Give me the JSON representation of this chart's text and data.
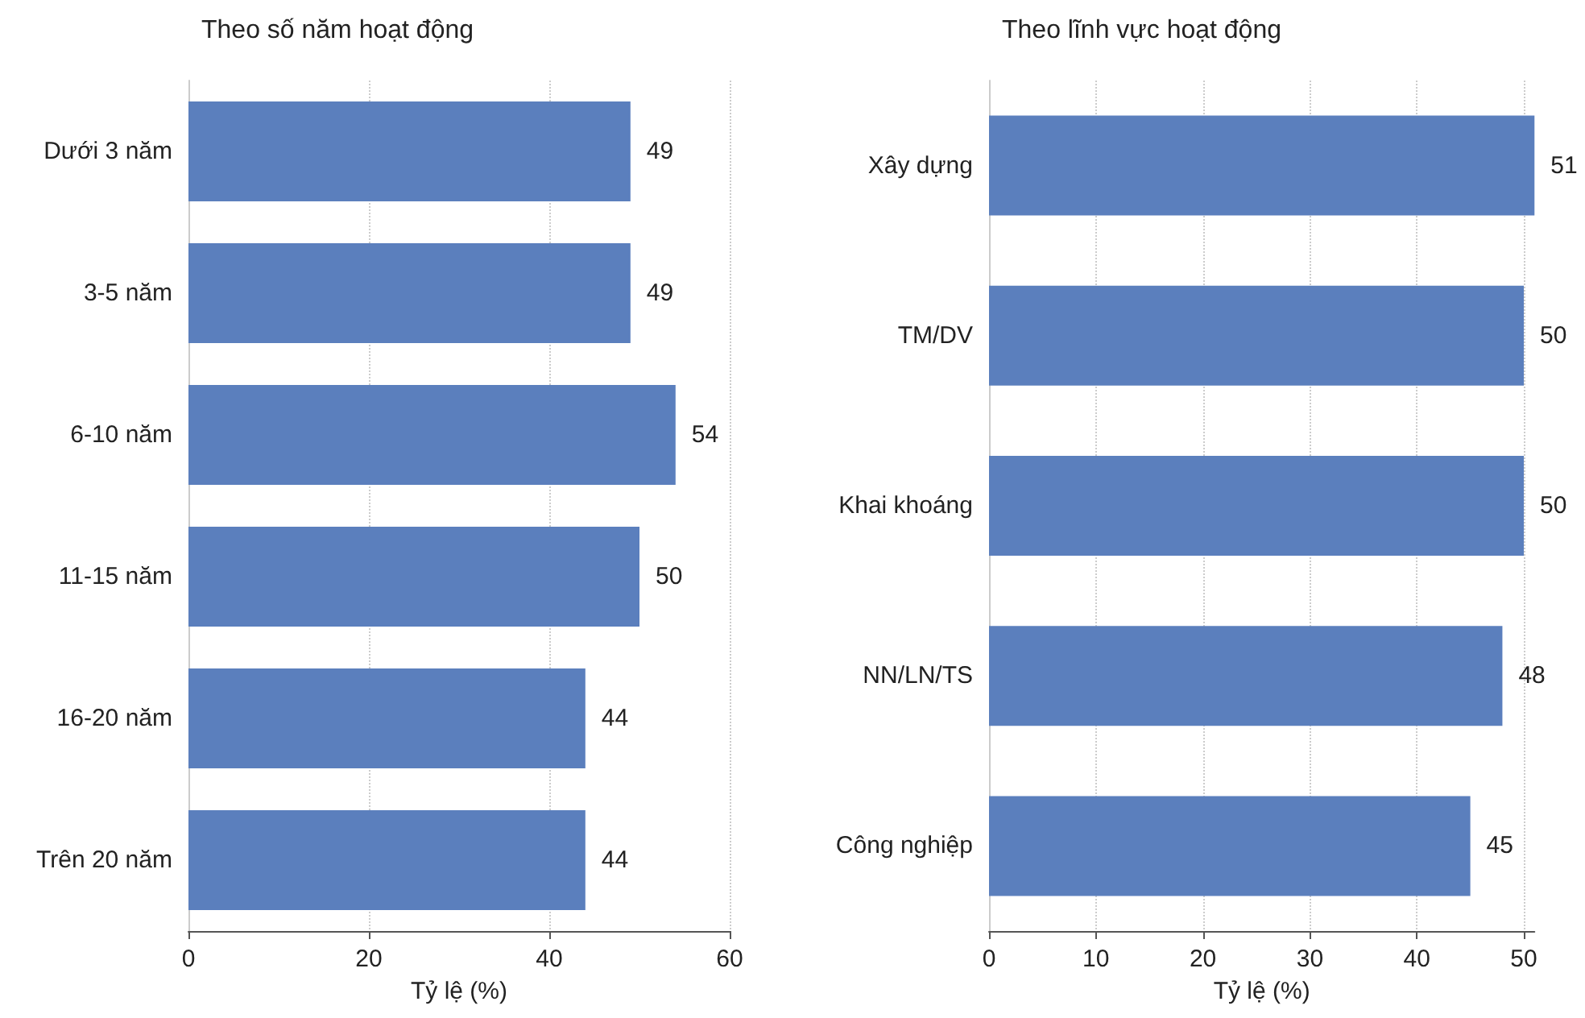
{
  "chart_data": [
    {
      "type": "bar",
      "orientation": "horizontal",
      "title": "Theo số năm hoạt động",
      "xlabel": "Tỷ lệ (%)",
      "categories": [
        "Dưới 3 năm",
        "3-5 năm",
        "6-10 năm",
        "11-15 năm",
        "16-20 năm",
        "Trên 20 năm"
      ],
      "values": [
        49,
        49,
        54,
        50,
        44,
        44
      ],
      "color": "#5b7fbd",
      "xlim": [
        0,
        60
      ],
      "xticks": [
        0,
        20,
        40,
        60
      ],
      "grid": "x",
      "data_labels": true
    },
    {
      "type": "bar",
      "orientation": "horizontal",
      "title": "Theo lĩnh vực hoạt động",
      "xlabel": "Tỷ lệ (%)",
      "categories": [
        "Xây dựng",
        "TM/DV",
        "Khai khoáng",
        "NN/LN/TS",
        "Công nghiệp"
      ],
      "values": [
        51,
        50,
        50,
        48,
        45
      ],
      "color": "#5b7fbd",
      "xlim": [
        0,
        51
      ],
      "xticks": [
        0,
        10,
        20,
        30,
        40,
        50
      ],
      "grid": "x",
      "data_labels": true
    }
  ]
}
